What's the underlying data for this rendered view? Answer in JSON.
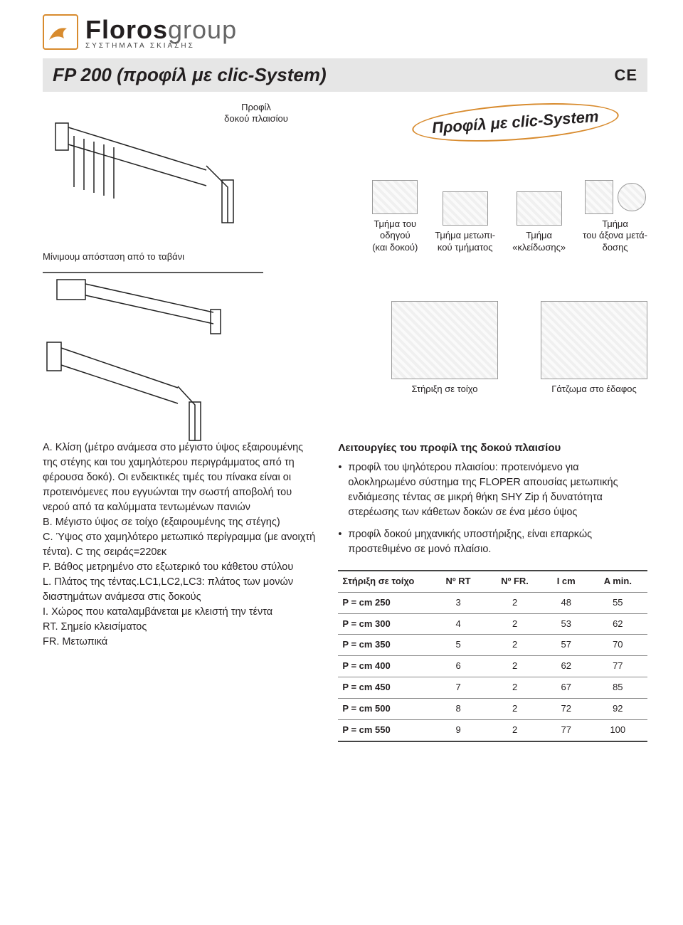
{
  "logo": {
    "main_bold": "Floros",
    "main_light": "group",
    "sub": "ΣΥΣΤΗΜΑΤΑ  ΣΚΙΑΣΗΣ",
    "icon_color": "#d88b2e"
  },
  "titlebar": {
    "title": "FP 200 (προφίλ με clic-System)",
    "ce": "CE"
  },
  "callout": {
    "text": "Προφίλ με clic-System",
    "border_color": "#d88b2e"
  },
  "captions": {
    "beam_profile": "Προφίλ\nδοκού πλαισίου",
    "guide_section": "Τμήμα του\nοδηγού\n(και δοκού)",
    "front_section": "Τμήμα μετωπι-\nκού τμήματος",
    "lock_section": "Τμήμα\n«κλείδωσης»",
    "axle_section": "Τμήμα\nτου άξονα μετά-\nδοσης",
    "ceiling_min": "Μίνιμουμ απόσταση από το ταβάνι",
    "wall_mount": "Στήριξη σε τοίχο",
    "floor_anchor": "Γάτζωμα στο έδαφος"
  },
  "definitions": {
    "A": "Α.  Κλίση (μέτρο ανάμεσα στο μέγιστο ύψος εξαιρουμένης της   στέγης και του χαμηλότερου περιγράμματος από τη φέρουσα δοκό). Οι ενδεικτικές τιμές του πίνακα είναι οι προτεινόμενες που εγγυώνται την σωστή αποβολή του  νερού από τα  καλύμματα τεντωμένων πανιών",
    "B": "Β.  Μέγιστο ύψος σε τοίχο (εξαιρουμένης της στέγης)",
    "C": "C.   Ύψος στο χαμηλότερο μετωπικό περίγραμμα (με ανοιχτή τέντα). C της σειράς=220εκ",
    "P": "P.   Βάθος μετρημένο στο εξωτερικό του κάθετου στύλου",
    "L": "L.   Πλάτος της τέντας.LC1,LC2,LC3: πλάτος των μονών διαστημάτων ανάμεσα στις δοκούς",
    "I": "Ι.    Χώρος που καταλαμβάνεται με κλειστή την τέντα",
    "RT": "RT. Σημείο κλεισίματος",
    "FR": "FR. Μετωπικά"
  },
  "functions": {
    "heading": "Λειτουργίες του προφίλ της δοκού πλαισίου",
    "items": [
      "προφίλ του ψηλότερου πλαισίου: προτεινόμενο για ολοκληρωμένο σύστημα της FLOPER απουσίας μετωπικής ενδιάμεσης τέντας σε μικρή θήκη SHY Zip ή δυνατότητα στερέωσης των κάθετων δοκών σε ένα μέσο ύψος",
      "προφίλ δοκού μηχανικής υποστήριξης, είναι επαρκώς προστεθιμένο σε μονό πλαίσιο."
    ]
  },
  "table": {
    "headers": [
      "Στήριξη σε τοίχο",
      "Nº RT",
      "Nº FR.",
      "I cm",
      "A min."
    ],
    "rows": [
      [
        "P = cm 250",
        "3",
        "2",
        "48",
        "55"
      ],
      [
        "P = cm 300",
        "4",
        "2",
        "53",
        "62"
      ],
      [
        "P = cm 350",
        "5",
        "2",
        "57",
        "70"
      ],
      [
        "P = cm 400",
        "6",
        "2",
        "62",
        "77"
      ],
      [
        "P = cm 450",
        "7",
        "2",
        "67",
        "85"
      ],
      [
        "P = cm 500",
        "8",
        "2",
        "72",
        "92"
      ],
      [
        "P = cm 550",
        "9",
        "2",
        "77",
        "100"
      ]
    ],
    "border_color": "#888888",
    "header_border_color": "#444444"
  }
}
